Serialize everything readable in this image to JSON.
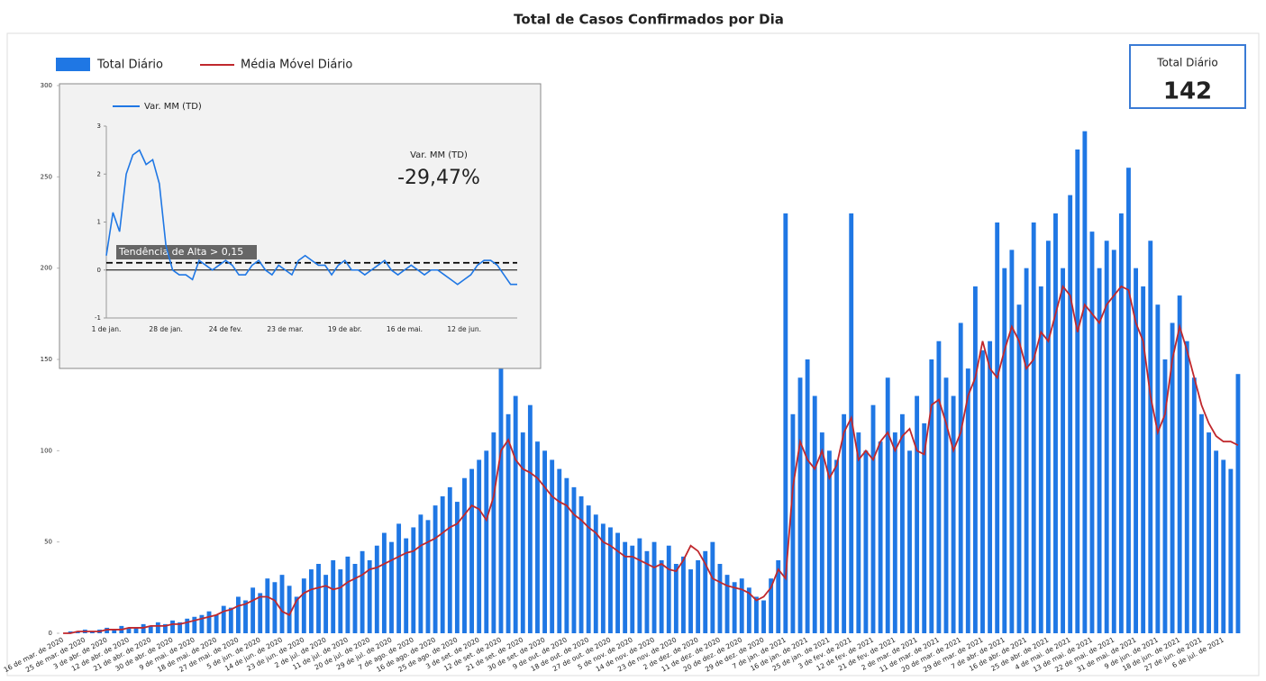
{
  "chart_data": [
    {
      "type": "bar",
      "title": "Total de Casos Confirmados por Dia",
      "categories": [
        "16 de mar. de 2020",
        null,
        null,
        "25 de mar. de 2020",
        null,
        null,
        "3 de abr. de 2020",
        null,
        null,
        "12 de abr. de 2020",
        null,
        null,
        "21 de abr. de 2020",
        null,
        null,
        "30 de abr. de 2020",
        null,
        null,
        "9 de mai. de 2020",
        null,
        null,
        "18 de mai. de 2020",
        null,
        null,
        "27 de mai. de 2020",
        null,
        null,
        "5 de jun. de 2020",
        null,
        null,
        "14 de jun. de 2020",
        null,
        null,
        "23 de jun. de 2020",
        null,
        null,
        "2 de jul. de 2020",
        null,
        null,
        "11 de jul. de 2020",
        null,
        null,
        "20 de jul. de 2020",
        null,
        null,
        "29 de jul. de 2020",
        null,
        null,
        "7 de ago. de 2020",
        null,
        null,
        "16 de ago. de 2020",
        null,
        null,
        "25 de ago. de 2020",
        null,
        null,
        "3 de set. de 2020",
        null,
        null,
        "12 de set. de 2020",
        null,
        null,
        "21 de set. de 2020",
        null,
        null,
        "30 de set. de 2020",
        null,
        null,
        "9 de out. de 2020",
        null,
        null,
        "18 de out. de 2020",
        null,
        null,
        "27 de out. de 2020",
        null,
        null,
        "5 de nov. de 2020",
        null,
        null,
        "14 de nov. de 2020",
        null,
        null,
        "23 de nov. de 2020",
        null,
        null,
        "2 de dez. de 2020",
        null,
        null,
        "11 de dez. de 2020",
        null,
        null,
        "20 de dez. de 2020",
        null,
        null,
        "29 de dez. de 2020",
        null,
        null,
        "7 de jan. de 2021",
        null,
        null,
        "16 de jan. de 2021",
        null,
        null,
        "25 de jan. de 2021",
        null,
        null,
        "3 de fev. de 2021",
        null,
        null,
        "12 de fev. de 2021",
        null,
        null,
        "21 de fev. de 2021",
        null,
        null,
        "2 de mar. de 2021",
        null,
        null,
        "11 de mar. de 2021",
        null,
        null,
        "20 de mar. de 2021",
        null,
        null,
        "29 de mar. de 2021",
        null,
        null,
        "7 de abr. de 2021",
        null,
        null,
        "16 de abr. de 2021",
        null,
        null,
        "25 de abr. de 2021",
        null,
        null,
        "4 de mai. de 2021",
        null,
        null,
        "13 de mai. de 2021",
        null,
        null,
        "22 de mai. de 2021",
        null,
        null,
        "31 de mai. de 2021",
        null,
        null,
        "9 de jun. de 2021",
        null,
        null,
        "18 de jun. de 2021",
        null,
        null,
        "27 de jun. de 2021",
        null,
        null,
        "6 de jul. de 2021",
        null,
        null
      ],
      "series": [
        {
          "name": "Total Diário",
          "color": "#1f77e4",
          "values": [
            0,
            1,
            1,
            2,
            1,
            2,
            3,
            2,
            4,
            3,
            3,
            5,
            4,
            6,
            5,
            7,
            6,
            8,
            9,
            10,
            12,
            10,
            15,
            14,
            20,
            18,
            25,
            22,
            30,
            28,
            32,
            26,
            20,
            30,
            35,
            38,
            32,
            40,
            35,
            42,
            38,
            45,
            40,
            48,
            55,
            50,
            60,
            52,
            58,
            65,
            62,
            70,
            75,
            80,
            72,
            85,
            90,
            95,
            100,
            110,
            200,
            120,
            130,
            110,
            125,
            105,
            100,
            95,
            90,
            85,
            80,
            75,
            70,
            65,
            60,
            58,
            55,
            50,
            48,
            52,
            45,
            50,
            40,
            48,
            38,
            42,
            35,
            40,
            45,
            50,
            38,
            32,
            28,
            30,
            25,
            20,
            18,
            30,
            40,
            230,
            120,
            140,
            150,
            130,
            110,
            100,
            95,
            120,
            230,
            110,
            100,
            125,
            105,
            140,
            110,
            120,
            100,
            130,
            115,
            150,
            160,
            140,
            130,
            170,
            145,
            190,
            155,
            160,
            225,
            200,
            210,
            180,
            200,
            225,
            190,
            215,
            230,
            200,
            240,
            265,
            275,
            220,
            200,
            215,
            210,
            230,
            255,
            200,
            190,
            215,
            180,
            150,
            170,
            185,
            160,
            140,
            120,
            110,
            100,
            95,
            90,
            142
          ]
        },
        {
          "name": "Média Móvel Diário",
          "color": "#c0282d",
          "type": "line",
          "values": [
            0,
            0,
            1,
            1,
            1,
            1,
            2,
            2,
            2,
            3,
            3,
            3,
            4,
            4,
            4,
            5,
            5,
            6,
            7,
            8,
            9,
            10,
            12,
            13,
            15,
            16,
            18,
            20,
            20,
            18,
            12,
            10,
            18,
            22,
            24,
            25,
            26,
            24,
            25,
            28,
            30,
            32,
            35,
            36,
            38,
            40,
            42,
            44,
            45,
            48,
            50,
            52,
            55,
            58,
            60,
            65,
            70,
            68,
            62,
            75,
            100,
            106,
            95,
            90,
            88,
            85,
            80,
            75,
            72,
            70,
            65,
            62,
            58,
            55,
            50,
            48,
            45,
            42,
            42,
            40,
            38,
            36,
            38,
            35,
            34,
            40,
            48,
            45,
            38,
            30,
            28,
            26,
            25,
            24,
            22,
            18,
            20,
            25,
            35,
            30,
            80,
            105,
            95,
            90,
            100,
            85,
            92,
            110,
            118,
            95,
            100,
            95,
            105,
            110,
            100,
            108,
            112,
            100,
            98,
            125,
            128,
            115,
            100,
            110,
            130,
            140,
            160,
            145,
            140,
            155,
            168,
            160,
            145,
            150,
            165,
            160,
            175,
            190,
            185,
            165,
            180,
            175,
            170,
            180,
            185,
            190,
            188,
            170,
            160,
            130,
            110,
            120,
            150,
            168,
            155,
            140,
            125,
            115,
            108,
            105,
            105,
            103
          ]
        }
      ],
      "ylim": [
        0,
        300
      ],
      "yticks": [
        0,
        50,
        100,
        150,
        200,
        250,
        300
      ],
      "card": {
        "title": "Total Diário"
      }
    },
    {
      "type": "line",
      "categories": [
        "1 de jan.",
        null,
        null,
        null,
        null,
        null,
        null,
        null,
        null,
        "28 de jan.",
        null,
        null,
        null,
        null,
        null,
        null,
        null,
        null,
        "24 de fev.",
        null,
        null,
        null,
        null,
        null,
        null,
        null,
        null,
        "23 de mar.",
        null,
        null,
        null,
        null,
        null,
        null,
        null,
        null,
        "19 de abr.",
        null,
        null,
        null,
        null,
        null,
        null,
        null,
        null,
        "16 de mai.",
        null,
        null,
        null,
        null,
        null,
        null,
        null,
        null,
        "12 de jun.",
        null,
        null,
        null,
        null,
        null,
        null,
        null,
        null
      ],
      "series": [
        {
          "name": "Var. MM (TD)",
          "color": "#1f77e4",
          "values": [
            0.3,
            1.2,
            0.8,
            2.0,
            2.4,
            2.5,
            2.2,
            2.3,
            1.8,
            0.5,
            0.0,
            -0.1,
            -0.1,
            -0.2,
            0.2,
            0.1,
            0.0,
            0.1,
            0.2,
            0.1,
            -0.1,
            -0.1,
            0.1,
            0.2,
            0.0,
            -0.1,
            0.1,
            0.0,
            -0.1,
            0.2,
            0.3,
            0.2,
            0.1,
            0.1,
            -0.1,
            0.1,
            0.2,
            0.0,
            0.0,
            -0.1,
            0.0,
            0.1,
            0.2,
            0.0,
            -0.1,
            0.0,
            0.1,
            0.0,
            -0.1,
            0.0,
            0.0,
            -0.1,
            -0.2,
            -0.3,
            -0.2,
            -0.1,
            0.1,
            0.2,
            0.2,
            0.1,
            -0.1,
            -0.3,
            -0.3
          ]
        }
      ],
      "ylim": [
        -1,
        3
      ],
      "yticks": [
        -1,
        0,
        1,
        2,
        3
      ],
      "threshold": {
        "value": 0.15,
        "label": "Tendência de Alta > 0,15"
      },
      "kpi": {
        "title": "Var. MM (TD)",
        "value": -29.47,
        "label": "-29,47%"
      }
    }
  ]
}
